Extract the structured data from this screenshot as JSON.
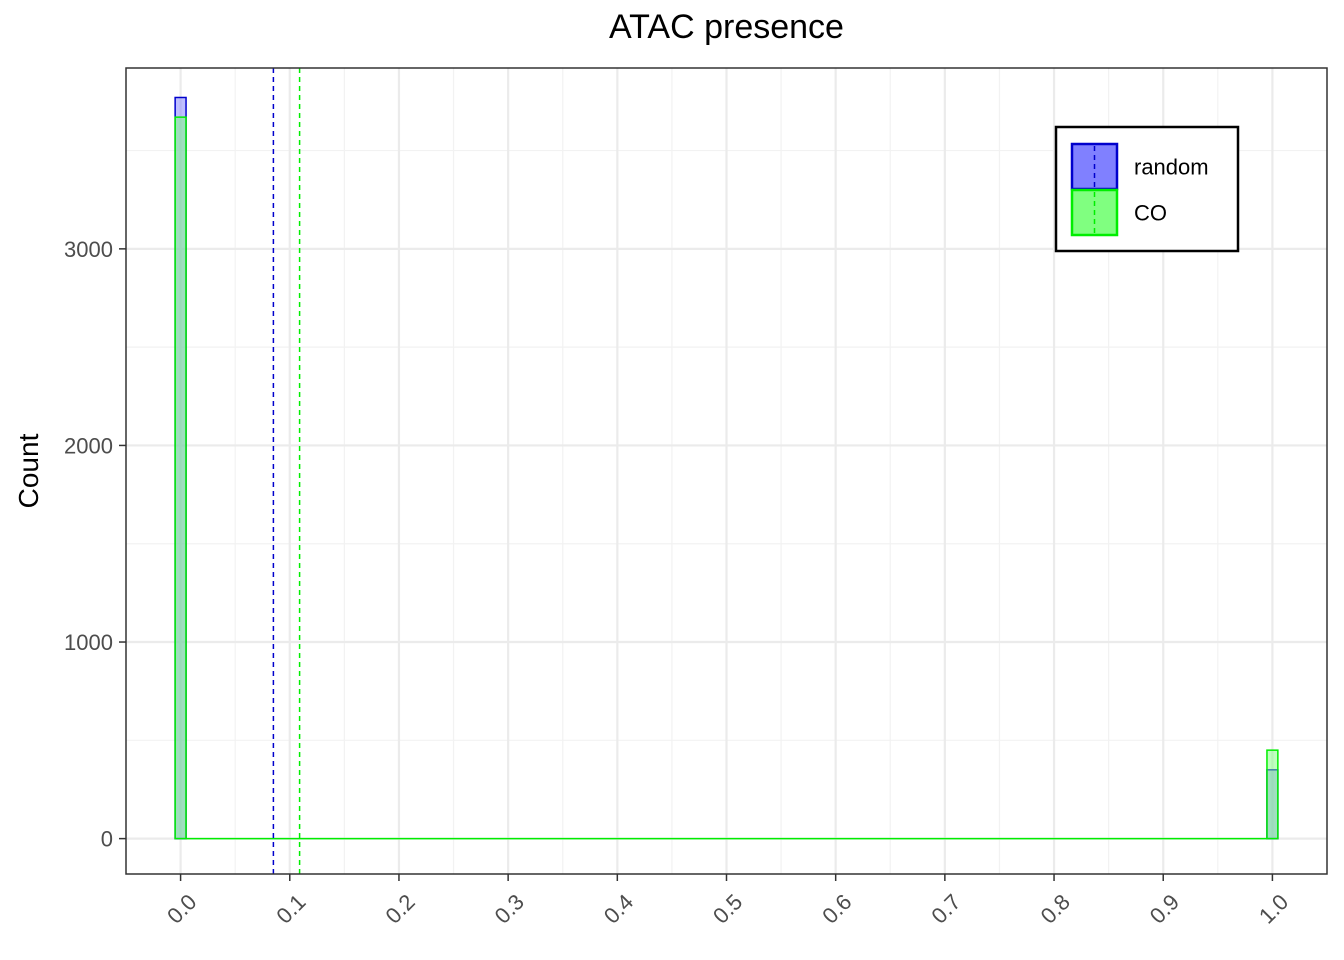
{
  "chart_data": {
    "type": "bar",
    "title": "ATAC presence",
    "xlabel": "",
    "ylabel": "Count",
    "xlim": [
      -0.05,
      1.05
    ],
    "ylim": [
      -180,
      3920
    ],
    "x_ticks": [
      "0.0",
      "0.1",
      "0.2",
      "0.3",
      "0.4",
      "0.5",
      "0.6",
      "0.7",
      "0.8",
      "0.9",
      "1.0"
    ],
    "y_ticks": [
      "0",
      "1000",
      "2000",
      "3000"
    ],
    "bin_width": 0.01,
    "grid": true,
    "legend_position": "top-right",
    "series": [
      {
        "name": "random",
        "fill": "#8080ff",
        "line": "#0000cc",
        "bins": [
          {
            "x": 0.0,
            "count": 3770
          },
          {
            "x": 1.0,
            "count": 350
          }
        ],
        "mean": 0.085
      },
      {
        "name": "CO",
        "fill": "#80ff80",
        "line": "#00ee00",
        "bins": [
          {
            "x": 0.0,
            "count": 3670
          },
          {
            "x": 1.0,
            "count": 450
          }
        ],
        "mean": 0.109
      }
    ]
  }
}
